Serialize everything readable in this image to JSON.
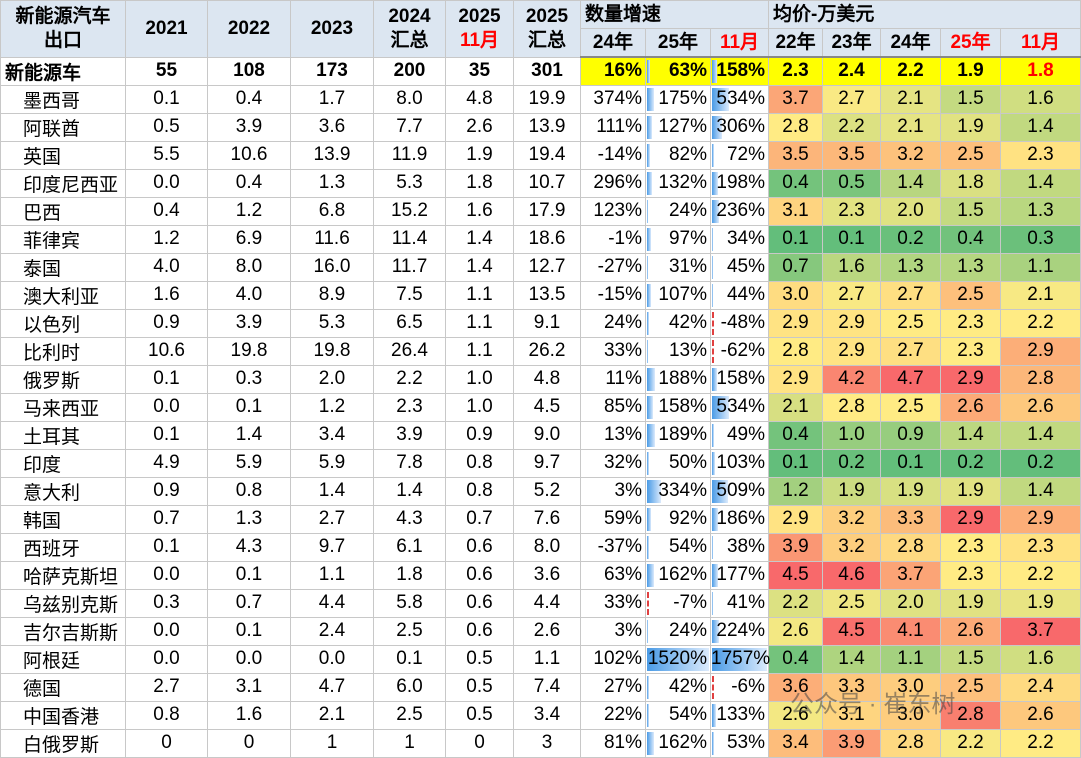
{
  "table": {
    "header": {
      "corner": [
        "新能源汽车",
        "出口"
      ],
      "years": [
        [
          "2021"
        ],
        [
          "2022"
        ],
        [
          "2023"
        ],
        [
          "2024",
          "汇总"
        ],
        [
          "2025",
          "11月"
        ],
        [
          "2025",
          "汇总"
        ]
      ],
      "growth_group": "数量增速",
      "growth_cols": [
        "24年",
        "25年",
        "11月"
      ],
      "price_group": "均价-万美元",
      "price_cols": [
        "22年",
        "23年",
        "24年",
        "25年",
        "11月"
      ]
    },
    "rows": [
      {
        "name": "新能源车",
        "volumes": [
          "55",
          "108",
          "173",
          "200",
          "35",
          "301"
        ],
        "growth": [
          {
            "value": 16,
            "label": "16%"
          },
          {
            "value": 63,
            "label": "63%"
          },
          {
            "value": 158,
            "label": "158%"
          }
        ],
        "prices": [
          "2.3",
          "2.4",
          "2.2",
          "1.9",
          "1.8"
        ]
      },
      {
        "name": "墨西哥",
        "volumes": [
          "0.1",
          "0.4",
          "1.7",
          "8.0",
          "4.8",
          "19.9"
        ],
        "growth": [
          {
            "value": 374,
            "label": "374%"
          },
          {
            "value": 175,
            "label": "175%"
          },
          {
            "value": 534,
            "label": "534%"
          }
        ],
        "prices": [
          "3.7",
          "2.7",
          "2.1",
          "1.5",
          "1.6"
        ]
      },
      {
        "name": "阿联酋",
        "volumes": [
          "0.5",
          "3.9",
          "3.6",
          "7.7",
          "2.6",
          "13.9"
        ],
        "growth": [
          {
            "value": 111,
            "label": "111%"
          },
          {
            "value": 127,
            "label": "127%"
          },
          {
            "value": 306,
            "label": "306%"
          }
        ],
        "prices": [
          "2.8",
          "2.2",
          "2.1",
          "1.9",
          "1.4"
        ]
      },
      {
        "name": "英国",
        "volumes": [
          "5.5",
          "10.6",
          "13.9",
          "11.9",
          "1.9",
          "19.4"
        ],
        "growth": [
          {
            "value": -14,
            "label": "-14%"
          },
          {
            "value": 82,
            "label": "82%"
          },
          {
            "value": 72,
            "label": "72%"
          }
        ],
        "prices": [
          "3.5",
          "3.5",
          "3.2",
          "2.5",
          "2.3"
        ]
      },
      {
        "name": "印度尼西亚",
        "volumes": [
          "0.0",
          "0.4",
          "1.3",
          "5.3",
          "1.8",
          "10.7"
        ],
        "growth": [
          {
            "value": 296,
            "label": "296%"
          },
          {
            "value": 132,
            "label": "132%"
          },
          {
            "value": 198,
            "label": "198%"
          }
        ],
        "prices": [
          "0.4",
          "0.5",
          "1.4",
          "1.8",
          "1.4"
        ]
      },
      {
        "name": "巴西",
        "volumes": [
          "0.4",
          "1.2",
          "6.8",
          "15.2",
          "1.6",
          "17.9"
        ],
        "growth": [
          {
            "value": 123,
            "label": "123%"
          },
          {
            "value": 24,
            "label": "24%"
          },
          {
            "value": 236,
            "label": "236%"
          }
        ],
        "prices": [
          "3.1",
          "2.3",
          "2.0",
          "1.5",
          "1.3"
        ]
      },
      {
        "name": "菲律宾",
        "volumes": [
          "1.2",
          "6.9",
          "11.6",
          "11.4",
          "1.4",
          "18.6"
        ],
        "growth": [
          {
            "value": -1,
            "label": "-1%"
          },
          {
            "value": 97,
            "label": "97%"
          },
          {
            "value": 34,
            "label": "34%"
          }
        ],
        "prices": [
          "0.1",
          "0.1",
          "0.2",
          "0.4",
          "0.3"
        ]
      },
      {
        "name": "泰国",
        "volumes": [
          "4.0",
          "8.0",
          "16.0",
          "11.7",
          "1.4",
          "12.7"
        ],
        "growth": [
          {
            "value": -27,
            "label": "-27%"
          },
          {
            "value": 31,
            "label": "31%"
          },
          {
            "value": 45,
            "label": "45%"
          }
        ],
        "prices": [
          "0.7",
          "1.6",
          "1.3",
          "1.3",
          "1.1"
        ]
      },
      {
        "name": "澳大利亚",
        "volumes": [
          "1.6",
          "4.0",
          "8.9",
          "7.5",
          "1.1",
          "13.5"
        ],
        "growth": [
          {
            "value": -15,
            "label": "-15%"
          },
          {
            "value": 107,
            "label": "107%"
          },
          {
            "value": 44,
            "label": "44%"
          }
        ],
        "prices": [
          "3.0",
          "2.7",
          "2.7",
          "2.5",
          "2.1"
        ]
      },
      {
        "name": "以色列",
        "volumes": [
          "0.9",
          "3.9",
          "5.3",
          "6.5",
          "1.1",
          "9.1"
        ],
        "growth": [
          {
            "value": 24,
            "label": "24%"
          },
          {
            "value": 42,
            "label": "42%"
          },
          {
            "value": -48,
            "label": "-48%"
          }
        ],
        "prices": [
          "2.9",
          "2.9",
          "2.5",
          "2.3",
          "2.2"
        ]
      },
      {
        "name": "比利时",
        "volumes": [
          "10.6",
          "19.8",
          "19.8",
          "26.4",
          "1.1",
          "26.2"
        ],
        "growth": [
          {
            "value": 33,
            "label": "33%"
          },
          {
            "value": 13,
            "label": "13%"
          },
          {
            "value": -62,
            "label": "-62%"
          }
        ],
        "prices": [
          "2.8",
          "2.9",
          "2.7",
          "2.3",
          "2.9"
        ]
      },
      {
        "name": "俄罗斯",
        "volumes": [
          "0.1",
          "0.3",
          "2.0",
          "2.2",
          "1.0",
          "4.8"
        ],
        "growth": [
          {
            "value": 11,
            "label": "11%"
          },
          {
            "value": 188,
            "label": "188%"
          },
          {
            "value": 158,
            "label": "158%"
          }
        ],
        "prices": [
          "2.9",
          "4.2",
          "4.7",
          "2.9",
          "2.8"
        ]
      },
      {
        "name": "马来西亚",
        "volumes": [
          "0.0",
          "0.1",
          "1.2",
          "2.3",
          "1.0",
          "4.5"
        ],
        "growth": [
          {
            "value": 85,
            "label": "85%"
          },
          {
            "value": 158,
            "label": "158%"
          },
          {
            "value": 534,
            "label": "534%"
          }
        ],
        "prices": [
          "2.1",
          "2.8",
          "2.5",
          "2.6",
          "2.6"
        ]
      },
      {
        "name": "土耳其",
        "volumes": [
          "0.1",
          "1.4",
          "3.4",
          "3.9",
          "0.9",
          "9.0"
        ],
        "growth": [
          {
            "value": 13,
            "label": "13%"
          },
          {
            "value": 189,
            "label": "189%"
          },
          {
            "value": 49,
            "label": "49%"
          }
        ],
        "prices": [
          "0.4",
          "1.0",
          "0.9",
          "1.4",
          "1.4"
        ]
      },
      {
        "name": "印度",
        "volumes": [
          "4.9",
          "5.9",
          "5.9",
          "7.8",
          "0.8",
          "9.7"
        ],
        "growth": [
          {
            "value": 32,
            "label": "32%"
          },
          {
            "value": 50,
            "label": "50%"
          },
          {
            "value": 103,
            "label": "103%"
          }
        ],
        "prices": [
          "0.1",
          "0.2",
          "0.1",
          "0.2",
          "0.2"
        ]
      },
      {
        "name": "意大利",
        "volumes": [
          "0.9",
          "0.8",
          "1.4",
          "1.4",
          "0.8",
          "5.2"
        ],
        "growth": [
          {
            "value": 3,
            "label": "3%"
          },
          {
            "value": 334,
            "label": "334%"
          },
          {
            "value": 509,
            "label": "509%"
          }
        ],
        "prices": [
          "1.2",
          "1.9",
          "1.9",
          "1.9",
          "1.4"
        ]
      },
      {
        "name": "韩国",
        "volumes": [
          "0.7",
          "1.3",
          "2.7",
          "4.3",
          "0.7",
          "7.6"
        ],
        "growth": [
          {
            "value": 59,
            "label": "59%"
          },
          {
            "value": 92,
            "label": "92%"
          },
          {
            "value": 186,
            "label": "186%"
          }
        ],
        "prices": [
          "2.9",
          "3.2",
          "3.3",
          "2.9",
          "2.9"
        ]
      },
      {
        "name": "西班牙",
        "volumes": [
          "0.1",
          "4.3",
          "9.7",
          "6.1",
          "0.6",
          "8.0"
        ],
        "growth": [
          {
            "value": -37,
            "label": "-37%"
          },
          {
            "value": 54,
            "label": "54%"
          },
          {
            "value": 38,
            "label": "38%"
          }
        ],
        "prices": [
          "3.9",
          "3.2",
          "2.8",
          "2.3",
          "2.3"
        ]
      },
      {
        "name": "哈萨克斯坦",
        "volumes": [
          "0.0",
          "0.1",
          "1.1",
          "1.8",
          "0.6",
          "3.6"
        ],
        "growth": [
          {
            "value": 63,
            "label": "63%"
          },
          {
            "value": 162,
            "label": "162%"
          },
          {
            "value": 177,
            "label": "177%"
          }
        ],
        "prices": [
          "4.5",
          "4.6",
          "3.7",
          "2.3",
          "2.2"
        ]
      },
      {
        "name": "乌兹别克斯",
        "volumes": [
          "0.3",
          "0.7",
          "4.4",
          "5.8",
          "0.6",
          "4.4"
        ],
        "growth": [
          {
            "value": 33,
            "label": "33%"
          },
          {
            "value": -7,
            "label": "-7%"
          },
          {
            "value": 41,
            "label": "41%"
          }
        ],
        "prices": [
          "2.2",
          "2.5",
          "2.0",
          "1.9",
          "1.9"
        ]
      },
      {
        "name": "吉尔吉斯斯",
        "volumes": [
          "0.0",
          "0.1",
          "2.4",
          "2.5",
          "0.6",
          "2.6"
        ],
        "growth": [
          {
            "value": 3,
            "label": "3%"
          },
          {
            "value": 24,
            "label": "24%"
          },
          {
            "value": 224,
            "label": "224%"
          }
        ],
        "prices": [
          "2.6",
          "4.5",
          "4.1",
          "2.6",
          "3.7"
        ]
      },
      {
        "name": "阿根廷",
        "volumes": [
          "0.0",
          "0.0",
          "0.0",
          "0.1",
          "0.5",
          "1.1"
        ],
        "growth": [
          {
            "value": 102,
            "label": "102%"
          },
          {
            "value": 1520,
            "label": "1520%"
          },
          {
            "value": 1757,
            "label": "1757%"
          }
        ],
        "prices": [
          "0.4",
          "1.4",
          "1.1",
          "1.5",
          "1.6"
        ]
      },
      {
        "name": "德国",
        "volumes": [
          "2.7",
          "3.1",
          "4.7",
          "6.0",
          "0.5",
          "7.4"
        ],
        "growth": [
          {
            "value": 27,
            "label": "27%"
          },
          {
            "value": 42,
            "label": "42%"
          },
          {
            "value": -6,
            "label": "-6%"
          }
        ],
        "prices": [
          "3.6",
          "3.3",
          "3.0",
          "2.5",
          "2.4"
        ]
      },
      {
        "name": "中国香港",
        "volumes": [
          "0.8",
          "1.6",
          "2.1",
          "2.5",
          "0.5",
          "3.4"
        ],
        "growth": [
          {
            "value": 22,
            "label": "22%"
          },
          {
            "value": 54,
            "label": "54%"
          },
          {
            "value": 133,
            "label": "133%"
          }
        ],
        "prices": [
          "2.6",
          "3.1",
          "3.0",
          "2.8",
          "2.6"
        ]
      },
      {
        "name": "白俄罗斯",
        "volumes": [
          "0",
          "0",
          "1",
          "1",
          "0",
          "3"
        ],
        "growth": [
          {
            "value": 81,
            "label": "81%"
          },
          {
            "value": 162,
            "label": "162%"
          },
          {
            "value": 53,
            "label": "53%"
          }
        ],
        "prices": [
          "3.4",
          "3.9",
          "2.8",
          "2.2",
          "2.2"
        ]
      }
    ]
  },
  "watermark": "公众号 · 崔东树"
}
